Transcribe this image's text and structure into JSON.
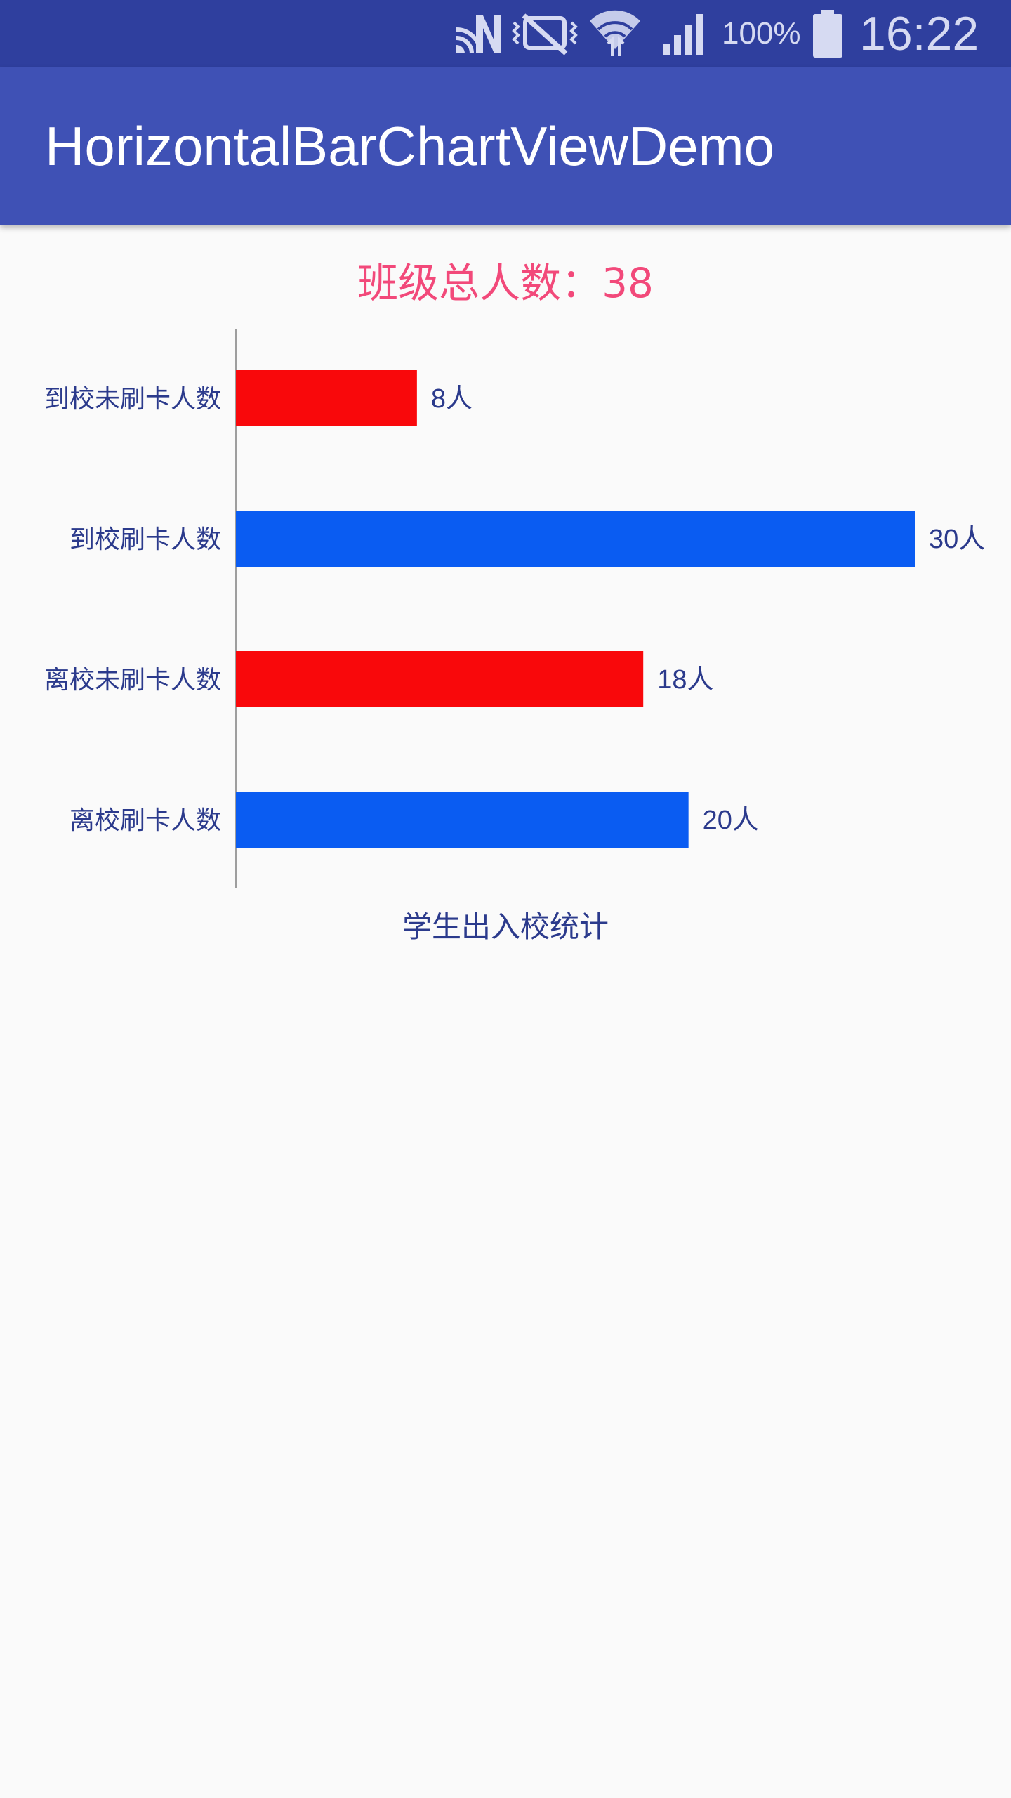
{
  "status_bar": {
    "battery_percent": "100%",
    "time": "16:22",
    "icons": [
      "nfc-icon",
      "mute-icon",
      "wifi-icon",
      "signal-icon",
      "battery-icon"
    ]
  },
  "app_bar": {
    "title": "HorizontalBarChartViewDemo",
    "background_color": "#3F51B5"
  },
  "summary": {
    "class_total_text": "班级总人数：38",
    "color": "#F2497A"
  },
  "chart_data": {
    "type": "bar",
    "orientation": "horizontal",
    "categories": [
      "到校未刷卡人数",
      "到校刷卡人数",
      "离校未刷卡人数",
      "离校刷卡人数"
    ],
    "values": [
      8,
      30,
      18,
      20
    ],
    "value_labels": [
      "8人",
      "30人",
      "18人",
      "20人"
    ],
    "colors": [
      "#F9080B",
      "#0A5CF2",
      "#F9080B",
      "#0A5CF2"
    ],
    "xlim": [
      0,
      30
    ],
    "title": "学生出入校统计",
    "xlabel": "",
    "ylabel": "",
    "grid": false,
    "legend": "none"
  }
}
